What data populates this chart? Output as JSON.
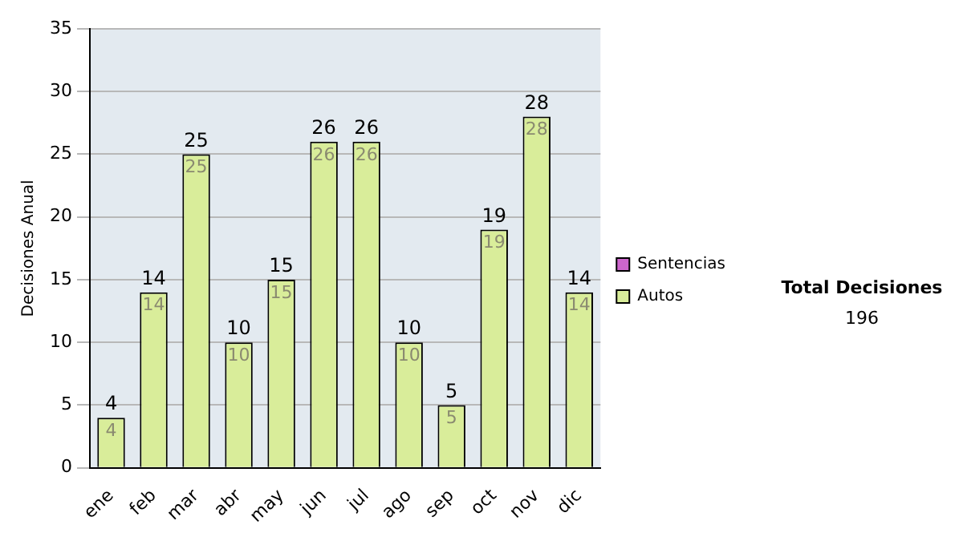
{
  "chart_data": {
    "type": "bar",
    "ylabel": "Decisiones Anual",
    "categories": [
      "ene",
      "feb",
      "mar",
      "abr",
      "may",
      "jun",
      "jul",
      "ago",
      "sep",
      "oct",
      "nov",
      "dic"
    ],
    "series": [
      {
        "name": "Autos",
        "color": "#d9ed9a",
        "values": [
          4,
          14,
          25,
          10,
          15,
          26,
          26,
          10,
          5,
          19,
          28,
          14
        ],
        "value_labels": [
          "4",
          "14",
          "25",
          "10",
          "15",
          "26",
          "26",
          "10",
          "5",
          "19",
          "28",
          "14"
        ]
      },
      {
        "name": "Sentencias",
        "color": "#cc66cc",
        "values": [
          0,
          0,
          0,
          0,
          0,
          0,
          0,
          0,
          0,
          0,
          0,
          0
        ]
      }
    ],
    "stacked": true,
    "totals": [
      "4",
      "14",
      "25",
      "10",
      "15",
      "26",
      "26",
      "10",
      "5",
      "19",
      "28",
      "14"
    ],
    "ylim": [
      0,
      35
    ],
    "yticks": [
      0,
      5,
      10,
      15,
      20,
      25,
      30,
      35
    ],
    "grid": "y",
    "legend": "right",
    "annotations": [
      "Total Decisiones",
      "196"
    ]
  }
}
